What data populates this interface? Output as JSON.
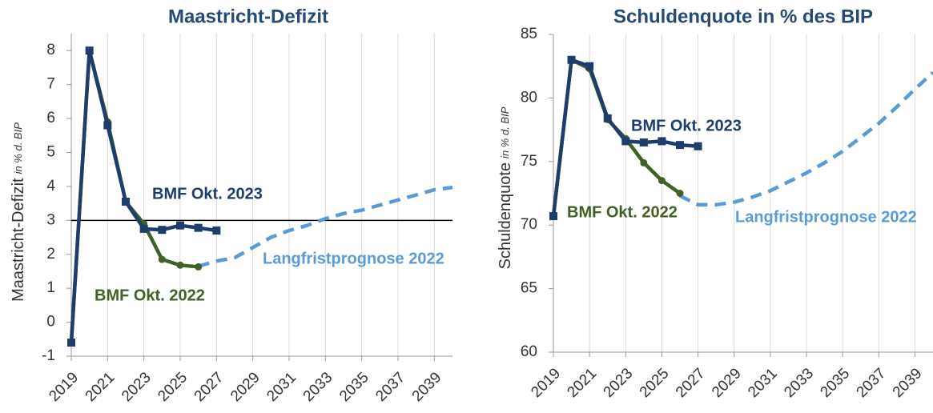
{
  "chart_data": [
    {
      "type": "line",
      "title": "Maastricht-Defizit",
      "ylabel": "Maastricht-Defizit",
      "ylabel_unit": "in % d. BIP",
      "xlim": [
        2019,
        2040
      ],
      "xticks": [
        2019,
        2021,
        2023,
        2025,
        2027,
        2029,
        2031,
        2033,
        2035,
        2037,
        2039
      ],
      "ylim": [
        -1,
        8.5
      ],
      "yticks": [
        -1,
        0,
        1,
        2,
        3,
        4,
        5,
        6,
        7,
        8
      ],
      "grid": "x",
      "reference_line": 3,
      "series": [
        {
          "name": "BMF Okt. 2023",
          "color": "#1f3d6b",
          "marker": "square",
          "dashed": false,
          "x": [
            2019,
            2020,
            2021,
            2022,
            2023,
            2024,
            2025,
            2026,
            2027
          ],
          "values": [
            -0.6,
            8.0,
            5.8,
            3.55,
            2.75,
            2.72,
            2.85,
            2.78,
            2.7
          ]
        },
        {
          "name": "BMF Okt. 2022",
          "color": "#3f6126",
          "marker": "circle",
          "dashed": false,
          "x": [
            2019,
            2020,
            2021,
            2022,
            2023,
            2024,
            2025,
            2026
          ],
          "values": [
            -0.6,
            8.0,
            5.9,
            3.55,
            2.9,
            1.85,
            1.68,
            1.63
          ]
        },
        {
          "name": "Langfristprognose 2022",
          "color": "#5b9bd5",
          "marker": "none",
          "dashed": true,
          "x": [
            2026,
            2027,
            2028,
            2029,
            2030,
            2031,
            2032,
            2033,
            2034,
            2035,
            2036,
            2037,
            2038,
            2039,
            2040
          ],
          "values": [
            1.65,
            1.8,
            1.9,
            2.2,
            2.5,
            2.7,
            2.85,
            3.05,
            3.2,
            3.3,
            3.45,
            3.6,
            3.75,
            3.9,
            3.97
          ]
        }
      ]
    },
    {
      "type": "line",
      "title": "Schuldenquote in % des BIP",
      "ylabel": "Schuldenquote",
      "ylabel_unit": "in % d. BIP",
      "xlim": [
        2019,
        2040
      ],
      "xticks": [
        2019,
        2021,
        2023,
        2025,
        2027,
        2029,
        2031,
        2033,
        2035,
        2037,
        2039
      ],
      "ylim": [
        60,
        85
      ],
      "yticks": [
        60,
        65,
        70,
        75,
        80,
        85
      ],
      "grid": "x",
      "series": [
        {
          "name": "BMF Okt. 2023",
          "color": "#1f3d6b",
          "marker": "square",
          "dashed": false,
          "x": [
            2019,
            2020,
            2021,
            2022,
            2023,
            2024,
            2025,
            2026,
            2027
          ],
          "values": [
            70.7,
            83.0,
            82.5,
            78.4,
            76.6,
            76.5,
            76.6,
            76.3,
            76.2
          ]
        },
        {
          "name": "BMF Okt. 2022",
          "color": "#3f6126",
          "marker": "circle",
          "dashed": false,
          "x": [
            2019,
            2020,
            2021,
            2022,
            2023,
            2024,
            2025,
            2026
          ],
          "values": [
            70.7,
            83.0,
            82.3,
            78.3,
            76.8,
            74.9,
            73.5,
            72.5
          ]
        },
        {
          "name": "Langfristprognose 2022",
          "color": "#5b9bd5",
          "marker": "none",
          "dashed": true,
          "x": [
            2026,
            2027,
            2028,
            2029,
            2030,
            2031,
            2032,
            2033,
            2034,
            2035,
            2036,
            2037,
            2038,
            2039,
            2040
          ],
          "values": [
            72.3,
            71.6,
            71.6,
            71.8,
            72.2,
            72.7,
            73.4,
            74.1,
            74.9,
            75.8,
            76.9,
            78.0,
            79.3,
            80.7,
            82.0
          ]
        }
      ]
    }
  ]
}
